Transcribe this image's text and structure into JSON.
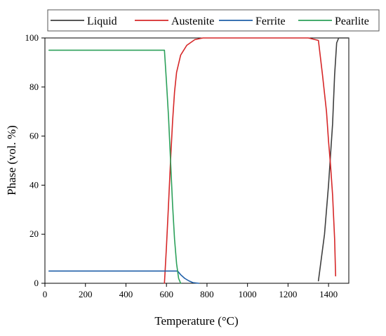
{
  "chart_data": {
    "type": "line",
    "title": "",
    "xlabel": "Temperature (°C)",
    "ylabel": "Phase (vol. %)",
    "xlim": [
      0,
      1500
    ],
    "ylim": [
      0,
      100
    ],
    "xticks": [
      "0",
      "200",
      "400",
      "600",
      "800",
      "1000",
      "1200",
      "1400"
    ],
    "yticks": [
      "0",
      "20",
      "40",
      "60",
      "80",
      "100"
    ],
    "grid": false,
    "legend_position": "top",
    "series": [
      {
        "name": "Liquid",
        "color": "#3f3f3f",
        "x": [
          1350,
          1380,
          1400,
          1420,
          1430,
          1440,
          1450,
          1470,
          1500
        ],
        "y": [
          1,
          20,
          40,
          65,
          85,
          98,
          100,
          100,
          100
        ]
      },
      {
        "name": "Austenite",
        "color": "#d62728",
        "x": [
          590,
          600,
          610,
          620,
          630,
          640,
          650,
          670,
          700,
          740,
          780,
          900,
          1100,
          1300,
          1350,
          1370,
          1390,
          1400,
          1410,
          1420,
          1430,
          1435
        ],
        "y": [
          0,
          15,
          32,
          50,
          66,
          78,
          86,
          93,
          97,
          99.3,
          100,
          100,
          100,
          100,
          99,
          85,
          70,
          58,
          48,
          36,
          18,
          3
        ]
      },
      {
        "name": "Ferrite",
        "color": "#1f5fa8",
        "x": [
          20,
          200,
          400,
          600,
          655,
          670,
          690,
          710,
          730,
          760
        ],
        "y": [
          5,
          5,
          5,
          5,
          5,
          3.5,
          2,
          1,
          0.3,
          0
        ]
      },
      {
        "name": "Pearlite",
        "color": "#2ca05a",
        "x": [
          20,
          200,
          400,
          590,
          600,
          610,
          620,
          630,
          640,
          650,
          660,
          670
        ],
        "y": [
          95,
          95,
          95,
          95,
          82,
          68,
          50,
          32,
          18,
          8,
          2,
          0
        ]
      }
    ]
  }
}
